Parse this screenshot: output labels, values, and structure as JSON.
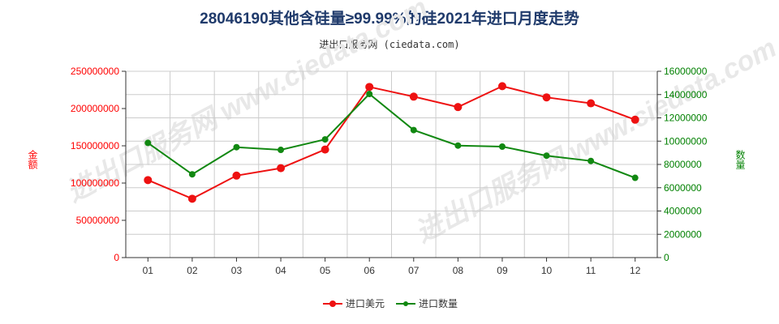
{
  "title": "28046190其他含硅量≥99.99%的硅2021年进口月度走势",
  "subtitle": "进出口服务网 (ciedata.com)",
  "watermark": "进出口服务网 www.ciedata.com",
  "colors": {
    "usd": "#ee1111",
    "qty": "#118811",
    "grid": "#cccccc"
  },
  "chart_data": {
    "type": "line",
    "categories": [
      "01",
      "02",
      "03",
      "04",
      "05",
      "06",
      "07",
      "08",
      "09",
      "10",
      "11",
      "12"
    ],
    "y_left": {
      "label": "金额",
      "ylim": [
        0,
        250000000
      ],
      "ticks": [
        "0",
        "50000000",
        "100000000",
        "150000000",
        "200000000",
        "250000000"
      ]
    },
    "y_right": {
      "label": "数量",
      "ylim": [
        0,
        16000000
      ],
      "ticks": [
        "0",
        "2000000",
        "4000000",
        "6000000",
        "8000000",
        "10000000",
        "12000000",
        "14000000",
        "16000000"
      ]
    },
    "series": [
      {
        "name": "进口美元",
        "axis": "left",
        "values": [
          104000000,
          79000000,
          110000000,
          120000000,
          145000000,
          229000000,
          216000000,
          202000000,
          230000000,
          215000000,
          207000000,
          185000000
        ]
      },
      {
        "name": "进口数量",
        "axis": "right",
        "values": [
          9850000,
          7150000,
          9480000,
          9250000,
          10150000,
          14050000,
          10950000,
          9620000,
          9530000,
          8750000,
          8300000,
          6850000
        ]
      }
    ],
    "legend_position": "bottom-center",
    "grid": true
  }
}
